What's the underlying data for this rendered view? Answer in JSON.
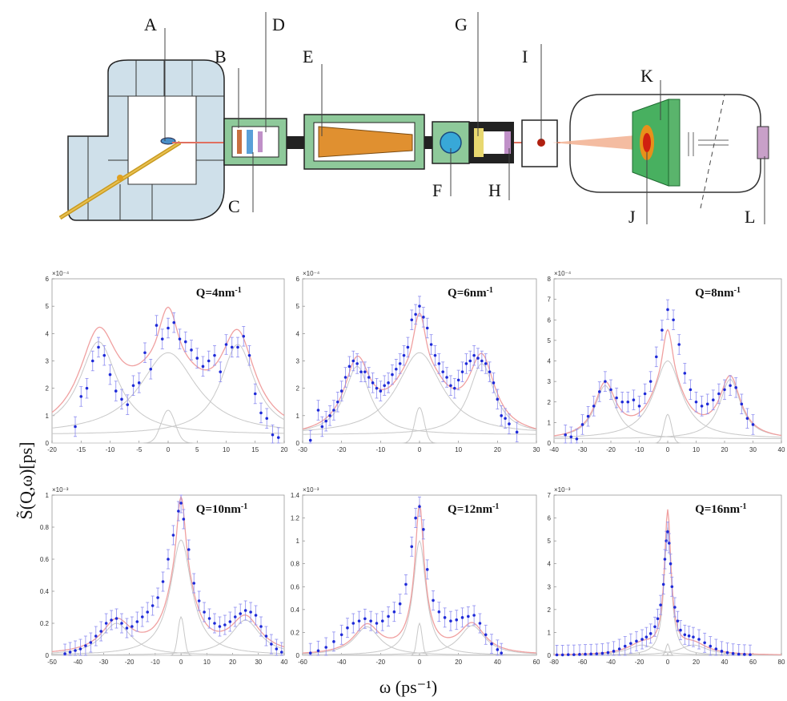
{
  "diagram": {
    "labels": [
      "A",
      "B",
      "C",
      "D",
      "E",
      "F",
      "G",
      "H",
      "I",
      "J",
      "K",
      "L"
    ]
  },
  "axes": {
    "ylabel": "S̃(Q,ω)[ps]",
    "xlabel": "ω (ps⁻¹)"
  },
  "chart_data": [
    {
      "type": "scatter",
      "label": "Q=4nm",
      "sup": "-1",
      "exponent": "×10⁻⁴",
      "xlim": [
        -20,
        20
      ],
      "ylim": [
        0,
        6
      ],
      "xticks": [
        -20,
        -15,
        -10,
        -5,
        0,
        5,
        10,
        15,
        20
      ],
      "yticks": [
        0,
        1,
        2,
        3,
        4,
        5,
        6
      ],
      "params": {
        "A1": 3.4,
        "w1": 4.0,
        "A0": 3.0,
        "w0": 6.0,
        "A2": 3.3,
        "w2": 3.6,
        "B": 1.2,
        "wb": 1.2,
        "side": 12,
        "base": 0.3
      },
      "x": [
        -16,
        -15,
        -14,
        -13,
        -12,
        -11,
        -10,
        -9,
        -8,
        -7,
        -6,
        -5,
        -4,
        -3,
        -2,
        -1,
        0,
        1,
        2,
        3,
        4,
        5,
        6,
        7,
        8,
        9,
        10,
        11,
        12,
        13,
        14,
        15,
        16,
        17,
        18,
        19
      ],
      "y": [
        0.6,
        1.7,
        2.0,
        3.0,
        3.5,
        3.2,
        2.5,
        1.9,
        1.6,
        1.4,
        2.1,
        2.2,
        3.3,
        2.7,
        4.3,
        3.8,
        4.2,
        4.4,
        3.8,
        3.7,
        3.4,
        3.1,
        2.8,
        3.0,
        3.2,
        2.6,
        3.6,
        3.5,
        3.5,
        3.9,
        3.2,
        1.8,
        1.1,
        0.9,
        0.3,
        0.2
      ]
    },
    {
      "type": "scatter",
      "label": "Q=6nm",
      "sup": "-1",
      "exponent": "×10⁻⁴",
      "xlim": [
        -30,
        30
      ],
      "ylim": [
        0,
        6
      ],
      "xticks": [
        -30,
        -20,
        -10,
        0,
        10,
        20,
        30
      ],
      "yticks": [
        0,
        1,
        2,
        3,
        4,
        5,
        6
      ],
      "params": {
        "A1": 2.5,
        "w1": 4.0,
        "A0": 3.0,
        "w0": 7.0,
        "A2": 2.6,
        "w2": 4.0,
        "B": 1.3,
        "wb": 1.2,
        "side": 16,
        "base": 0.3
      },
      "x": [
        -28,
        -26,
        -25,
        -24,
        -23,
        -22,
        -21,
        -20,
        -19,
        -18,
        -17,
        -16,
        -15,
        -14,
        -13,
        -12,
        -11,
        -10,
        -9,
        -8,
        -7,
        -6,
        -5,
        -4,
        -3,
        -2,
        -1,
        0,
        1,
        2,
        3,
        4,
        5,
        6,
        7,
        8,
        9,
        10,
        11,
        12,
        13,
        14,
        15,
        16,
        17,
        18,
        19,
        20,
        21,
        22,
        23,
        25
      ],
      "y": [
        0.1,
        1.2,
        0.6,
        0.8,
        1.0,
        1.2,
        1.5,
        1.9,
        2.4,
        2.8,
        3.0,
        2.9,
        2.6,
        2.6,
        2.4,
        2.2,
        2.0,
        1.9,
        2.1,
        2.2,
        2.5,
        2.7,
        2.9,
        3.2,
        3.5,
        4.5,
        4.7,
        5.0,
        4.6,
        4.2,
        3.6,
        3.2,
        2.9,
        2.6,
        2.4,
        2.1,
        2.0,
        2.3,
        2.6,
        2.9,
        3.0,
        3.2,
        3.1,
        3.0,
        2.9,
        2.6,
        2.2,
        1.6,
        1.0,
        0.9,
        0.7,
        0.4
      ]
    },
    {
      "type": "scatter",
      "label": "Q=8nm",
      "sup": "-1",
      "exponent": "×10⁻⁴",
      "xlim": [
        -40,
        40
      ],
      "ylim": [
        0,
        8
      ],
      "xticks": [
        -40,
        -30,
        -20,
        -10,
        0,
        10,
        20,
        30,
        40
      ],
      "yticks": [
        0,
        1,
        2,
        3,
        4,
        5,
        6,
        7,
        8
      ],
      "params": {
        "A1": 2.6,
        "w1": 4.5,
        "A0": 3.8,
        "w0": 6.0,
        "A2": 2.9,
        "w2": 4.5,
        "B": 1.4,
        "wb": 1.3,
        "side": 22,
        "base": 0.2
      },
      "x": [
        -36,
        -34,
        -32,
        -30,
        -28,
        -26,
        -24,
        -22,
        -20,
        -18,
        -16,
        -14,
        -12,
        -10,
        -8,
        -6,
        -4,
        -2,
        0,
        2,
        4,
        6,
        8,
        10,
        12,
        14,
        16,
        18,
        20,
        22,
        24,
        26,
        28,
        30
      ],
      "y": [
        0.4,
        0.3,
        0.2,
        0.9,
        1.3,
        1.8,
        2.5,
        3.0,
        2.6,
        2.2,
        2.0,
        2.0,
        2.1,
        1.8,
        2.4,
        3.0,
        4.2,
        5.5,
        6.5,
        6.0,
        4.8,
        3.4,
        2.6,
        2.0,
        1.8,
        1.9,
        2.1,
        2.4,
        2.6,
        2.8,
        2.7,
        1.9,
        1.2,
        0.9
      ]
    },
    {
      "type": "scatter",
      "label": "Q=10nm",
      "sup": "-1",
      "exponent": "×10⁻³",
      "xlim": [
        -50,
        40
      ],
      "ylim": [
        0,
        1
      ],
      "xticks": [
        -50,
        -40,
        -30,
        -20,
        -10,
        0,
        10,
        20,
        30,
        40
      ],
      "yticks": [
        0,
        0.2,
        0.4,
        0.6,
        0.8,
        1
      ],
      "params": {
        "A1": 0.2,
        "w1": 7,
        "A0": 0.72,
        "w0": 5,
        "A2": 0.22,
        "w2": 7,
        "B": 0.24,
        "wb": 1.2,
        "side": 25,
        "base": 0.0
      },
      "x": [
        -45,
        -43,
        -41,
        -39,
        -37,
        -35,
        -33,
        -31,
        -29,
        -27,
        -25,
        -23,
        -21,
        -19,
        -17,
        -15,
        -13,
        -11,
        -9,
        -7,
        -5,
        -3,
        -1,
        0,
        1,
        3,
        5,
        7,
        9,
        11,
        13,
        15,
        17,
        19,
        21,
        23,
        25,
        27,
        29,
        31,
        33,
        35,
        37,
        39
      ],
      "y": [
        0.01,
        0.02,
        0.03,
        0.04,
        0.06,
        0.08,
        0.12,
        0.15,
        0.2,
        0.22,
        0.23,
        0.2,
        0.17,
        0.18,
        0.21,
        0.24,
        0.27,
        0.31,
        0.36,
        0.46,
        0.6,
        0.75,
        0.9,
        0.95,
        0.85,
        0.66,
        0.45,
        0.34,
        0.27,
        0.23,
        0.2,
        0.18,
        0.19,
        0.21,
        0.24,
        0.26,
        0.28,
        0.27,
        0.25,
        0.18,
        0.12,
        0.07,
        0.04,
        0.02
      ]
    },
    {
      "type": "scatter",
      "label": "Q=12nm",
      "sup": "-1",
      "exponent": "×10⁻³",
      "xlim": [
        -60,
        60
      ],
      "ylim": [
        0,
        1.4
      ],
      "xticks": [
        -60,
        -40,
        -20,
        0,
        20,
        40,
        60
      ],
      "yticks": [
        0,
        0.2,
        0.4,
        0.6,
        0.8,
        1,
        1.2,
        1.4
      ],
      "params": {
        "A1": 0.25,
        "w1": 8,
        "A0": 1.0,
        "w0": 4,
        "A2": 0.26,
        "w2": 8,
        "B": 0.28,
        "wb": 1.3,
        "side": 27,
        "base": 0.0
      },
      "x": [
        -56,
        -52,
        -48,
        -44,
        -40,
        -37,
        -34,
        -31,
        -28,
        -25,
        -22,
        -19,
        -16,
        -13,
        -10,
        -7,
        -4,
        -2,
        0,
        2,
        4,
        7,
        10,
        13,
        16,
        19,
        22,
        25,
        28,
        31,
        34,
        37,
        40,
        42
      ],
      "y": [
        0.02,
        0.04,
        0.07,
        0.12,
        0.18,
        0.24,
        0.28,
        0.3,
        0.32,
        0.3,
        0.28,
        0.3,
        0.34,
        0.38,
        0.45,
        0.62,
        0.95,
        1.2,
        1.3,
        1.1,
        0.75,
        0.48,
        0.38,
        0.33,
        0.3,
        0.31,
        0.33,
        0.34,
        0.35,
        0.28,
        0.18,
        0.1,
        0.05,
        0.02
      ]
    },
    {
      "type": "scatter",
      "label": "Q=16nm",
      "sup": "-1",
      "exponent": "×10⁻³",
      "xlim": [
        -80,
        80
      ],
      "ylim": [
        0,
        7
      ],
      "xticks": [
        -80,
        -60,
        -40,
        -20,
        0,
        20,
        40,
        60,
        80
      ],
      "yticks": [
        0,
        1,
        2,
        3,
        4,
        5,
        6,
        7
      ],
      "params": {
        "A1": 0.45,
        "w1": 12,
        "A0": 5.6,
        "w0": 3.0,
        "A2": 0.45,
        "w2": 12,
        "B": 0.5,
        "wb": 1.3,
        "side": 18,
        "base": 0.0
      },
      "x": [
        -78,
        -74,
        -70,
        -66,
        -62,
        -58,
        -54,
        -50,
        -46,
        -42,
        -38,
        -34,
        -30,
        -26,
        -22,
        -18,
        -15,
        -12,
        -9,
        -7,
        -5,
        -3,
        -2,
        -1,
        0,
        1,
        2,
        3,
        5,
        7,
        9,
        12,
        15,
        18,
        22,
        26,
        30,
        34,
        38,
        42,
        46,
        50,
        54,
        58
      ],
      "y": [
        0.02,
        0.02,
        0.03,
        0.03,
        0.04,
        0.05,
        0.06,
        0.07,
        0.09,
        0.12,
        0.18,
        0.28,
        0.4,
        0.52,
        0.62,
        0.7,
        0.8,
        0.95,
        1.25,
        1.6,
        2.2,
        3.1,
        4.2,
        5.0,
        5.4,
        4.9,
        4.0,
        3.0,
        2.1,
        1.5,
        1.1,
        0.9,
        0.85,
        0.8,
        0.7,
        0.55,
        0.4,
        0.28,
        0.18,
        0.12,
        0.08,
        0.05,
        0.04,
        0.03
      ]
    }
  ]
}
